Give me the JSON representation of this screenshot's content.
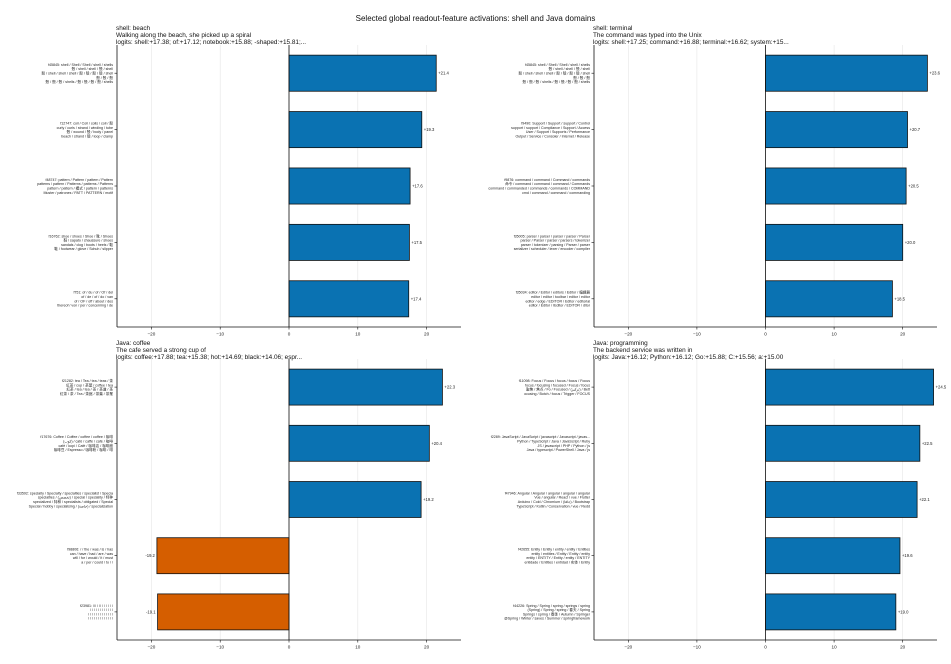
{
  "figure_title": "Selected global readout-feature activations: shell and Java domains",
  "colors": {
    "positive": "#0a72b2",
    "negative": "#d55e00",
    "edge": "#111111",
    "grid": "#e6e6e6"
  },
  "chart_data": [
    {
      "type": "bar",
      "orientation": "horizontal",
      "title_lines": [
        "shell: beach",
        "Walking along the beach, she picked up a spiral",
        "logits: shell:+17.38; of:+17.12; notebook:+15.88; -shaped:+15.81;..."
      ],
      "xlim": [
        -25,
        25
      ],
      "xticks": [
        -20,
        -10,
        0,
        10,
        20
      ],
      "grid": true,
      "categories": [
        [
          "f45845: shell / Shell / Shell / shell / shells",
          "殼 / shell / shell / 殼 / shell",
          "殼 / shell / shell / shell / 殼 / 殼 / 殼 / 殼 / shell",
          "殼 / 殼 / 殼",
          "殼 / 殼 / 殼 / shells / 殼 / 殼 / 殼 / 殼 / shells"
        ],
        [
          "f12747: coil / Coil / coils / coil / 殼",
          "curly / curls / strand / winding / tube",
          "殼 / wound / 殼 / body / panel",
          "beach / strand / 殼 / loop / clamp"
        ],
        [
          "f48747: pattern / Pattern / pattern / Pattern",
          "patterns / pattern / Patterns / patterns / Patterns",
          "pattern / pattern / 模式 / pattern / patterns",
          "Muster / patrones / PATT / PATTERN / motif"
        ],
        [
          "f16762: shoe / shoes / Shoe / 靴 / Shoes",
          "鞋 / sapato / chaussure / shoes",
          "sandals / clog / boots / heels / 鞋",
          "鞋 / footwear / glove / Schuh / slipper"
        ],
        [
          "f751: of / du / of / Of / del",
          "of / de / of / do / van",
          "of / OF / off / about / des",
          "thereof / von / per / concerning / de"
        ]
      ],
      "values": [
        21.4,
        19.3,
        17.6,
        17.5,
        17.4
      ],
      "value_labels": [
        "+21.4",
        "+19.3",
        "+17.6",
        "+17.5",
        "+17.4"
      ]
    },
    {
      "type": "bar",
      "orientation": "horizontal",
      "title_lines": [
        "shell: terminal",
        "The command was typed into the Unix",
        "logits: shell:+17.25; command:+16.88; terminal:+16.62; system:+15..."
      ],
      "xlim": [
        -25,
        25
      ],
      "xticks": [
        -20,
        -10,
        0,
        10,
        20
      ],
      "grid": true,
      "categories": [
        [
          "f45845: shell / Shell / Shell / shell / shells",
          "殼 / shell / shell / 殼 / shell",
          "殼 / shell / shell / shell / 殼 / 殼 / 殼 / 殼 / shell",
          "殼 / 殼 / 殼",
          "殼 / 殼 / 殼 / shells / 殼 / 殼 / 殼 / 殼 / shells"
        ],
        [
          "f9490: Support / Support / support / Control",
          "support / support / Compliance / Support / Access",
          "User / Support / Supports / Performance",
          "Output / Service / Consoler / Internet / Release"
        ],
        [
          "f9876: command / command / Command / commands",
          "命令 / command / command / command / Commands",
          "command / commanded / commands / commands / COMMAND",
          "cmd / command / command / commanding"
        ],
        [
          "f35005: parser / parser / parser / parser / Parser",
          "parser / Parser / parser / parsers / tokenizer",
          "parser / tokenizer / parsing / Parser / parser",
          "serializer / scheduler / lexer / encoder / compiler"
        ],
        [
          "f35034: editor / Editor / editors / Editor / 编辑器",
          "editor / editor / toolbar / editor / editor",
          "editor / edge / EDITOR / Editor / editorial",
          "editor / Editor / IEditor / EDITOR / ditor"
        ]
      ],
      "values": [
        23.6,
        20.7,
        20.5,
        20.0,
        18.5
      ],
      "value_labels": [
        "+23.6",
        "+20.7",
        "+20.5",
        "+20.0",
        "+18.5"
      ]
    },
    {
      "type": "bar",
      "orientation": "horizontal",
      "title_lines": [
        "Java: coffee",
        "The cafe served a strong cup of",
        "logits: coffee:+17.88; tea:+15.38; hot:+14.69; black:+14.06; espr..."
      ],
      "xlim": [
        -25,
        25
      ],
      "xticks": [
        -20,
        -10,
        0,
        10,
        20
      ],
      "grid": true,
      "categories": [
        [
          "f21282: tea / Tea / tea / teas / 茶",
          "紅茶 / cup / 茶葉 / coffee / tea",
          "紅茶 / tea / tea / 茶 / 茶道 / 茶",
          "紅茶 / 茶 / Tea / 茶館 / 茶葉 / 茶業"
        ],
        [
          "f17676: Coffee / Coffee / coffee / coffee / 咖啡",
          "(كوب) / café / caffè / café / 咖啡",
          "café / kopi / Café / 咖啡店 / 咖啡館",
          "咖啡豆 / Espresso / 咖啡粉 / 咖啡 / 啡"
        ],
        [
          "f33592: specialty / Specialty / specialties / specialist / Specia",
          "specialties / (تخصص) / special / speciality / 特种",
          "specialized / 特种 / specialists / obligated / Special",
          "Special / hobby / specialising / (خاصة) / specialization"
        ],
        [
          "f98806: / / the / was / is / has",
          "can / have / had / are / was",
          "will / for / would / it / must",
          "a / per / could / to / /"
        ],
        [
          "f23981: /// / // / / / / / /",
          "/ / / / / / / / / / / /",
          "/ / / / / / / / / / / / /",
          "/ / / / / / / / / / / / /"
        ]
      ],
      "values": [
        22.3,
        20.4,
        19.2,
        -19.2,
        -19.1
      ],
      "value_labels": [
        "+22.3",
        "+20.4",
        "+19.2",
        "-19.2",
        "-19.1"
      ]
    },
    {
      "type": "bar",
      "orientation": "horizontal",
      "title_lines": [
        "Java: programming",
        "The backend service was written in",
        "logits: Java:+16.12; Python:+16.12; Go:+15.88; C:+15.56; a:+15.00"
      ],
      "xlim": [
        -25,
        25
      ],
      "xticks": [
        -20,
        -10,
        0,
        10,
        20
      ],
      "grid": true,
      "categories": [
        [
          "f11098: Focus / Focus / focus / focus / Focus",
          "focus / focusing / focused / Focus / focus",
          "聚焦 / 焦点 / Fo / Focused / (تركيز) / Bett",
          "ocusing / Botch / focus / Trigger / FOCUS"
        ],
        [
          "f2289: JavaScript / JavaScript / javascript / Javascript / javas...",
          "Python / TypeScript / Java / JavaScript / Ruby",
          "JS / javascript / PHP / Python / js",
          "Java / typescript / PowerShell / Java / js"
        ],
        [
          "f47946: Angular / Angular / angular / angular / angular",
          "Vue / angular / React / vue / Flutter",
          "Arduino / Cold / Chromium / (جافا) / Bootstrap",
          "TypeScript / Kotlin / Conservation / vue / Redd"
        ],
        [
          "f42655: Entity / Entity / entity / entity / Entities",
          "entity / entities / Entity / Entity / entity",
          "entity / ENTITY / Entity / entity / ENTITY",
          "entidade / Entities / entidad / 实体 / Entity"
        ],
        [
          "f44226: Spring / Spring / spring / springs / spring",
          "(Spring) / Spring / spring / 春天 / Spring",
          "Springs / spring / 春季 / Autumn / Springer",
          "@Spring / Winter / saves / Summer / springframework"
        ]
      ],
      "values": [
        24.5,
        22.5,
        22.1,
        19.6,
        19.0
      ],
      "value_labels": [
        "+24.5",
        "+22.5",
        "+22.1",
        "+19.6",
        "+19.0"
      ]
    }
  ]
}
